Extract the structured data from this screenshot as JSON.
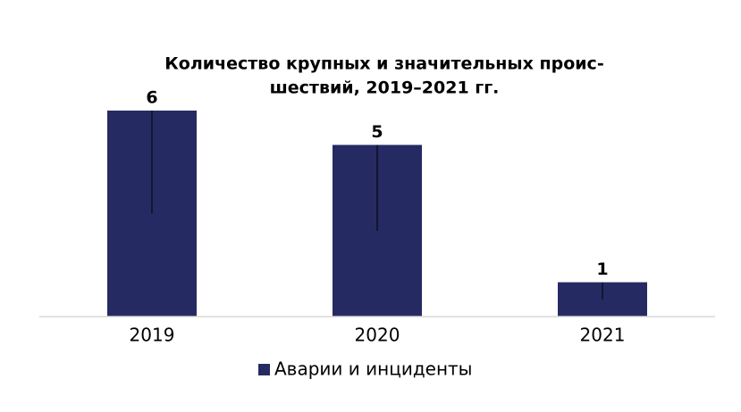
{
  "chart_data": {
    "type": "bar",
    "title": [
      "Количество крупных и значительных проис-",
      "шествий, 2019–2021 гг."
    ],
    "categories": [
      "2019",
      "2020",
      "2021"
    ],
    "series": [
      {
        "name": "Аварии и инциденты",
        "color": "#262a63",
        "values": [
          6,
          5,
          1
        ],
        "errors": [
          3,
          2.5,
          0.5
        ]
      }
    ],
    "ylim": [
      0,
      6
    ],
    "legend": "bottom"
  }
}
